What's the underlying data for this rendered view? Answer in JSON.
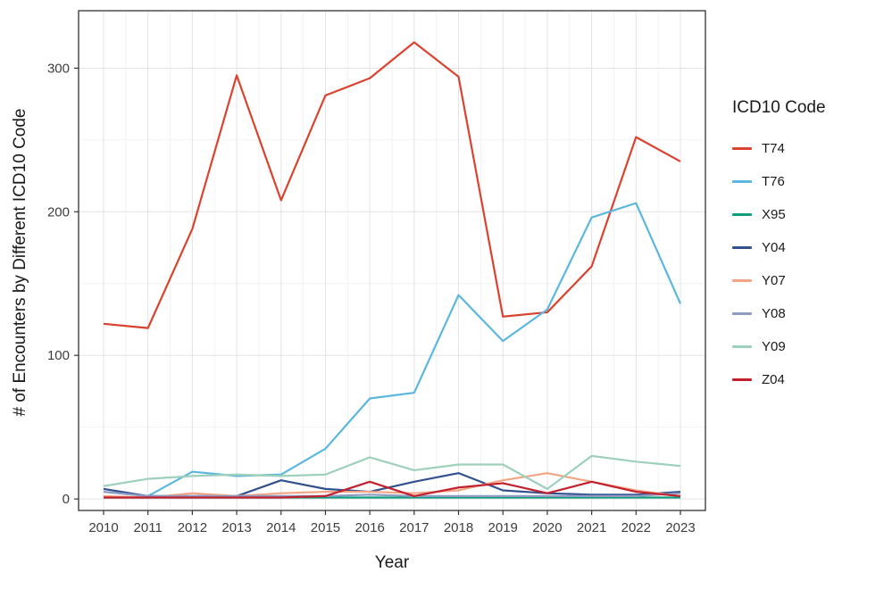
{
  "chart_data": {
    "type": "line",
    "title": "",
    "xlabel": "Year",
    "ylabel": "# of Encounters by Different ICD10 Code",
    "legend_title": "ICD10 Code",
    "legend_position": "right",
    "grid": true,
    "x": [
      2010,
      2011,
      2012,
      2013,
      2014,
      2015,
      2016,
      2017,
      2018,
      2019,
      2020,
      2021,
      2022,
      2023
    ],
    "ylim": [
      -8,
      340
    ],
    "yticks": [
      0,
      100,
      200,
      300
    ],
    "series": [
      {
        "name": "T74",
        "color": "#d9432f",
        "values": [
          122,
          119,
          188,
          295,
          208,
          281,
          293,
          318,
          294,
          127,
          130,
          162,
          252,
          235
        ]
      },
      {
        "name": "T76",
        "color": "#5bb7dd",
        "values": [
          5,
          2,
          19,
          16,
          17,
          35,
          70,
          74,
          142,
          110,
          132,
          196,
          206,
          136
        ]
      },
      {
        "name": "X95",
        "color": "#0e9e7d",
        "values": [
          1,
          1,
          1,
          1,
          1,
          1,
          1,
          1,
          1,
          1,
          1,
          1,
          1,
          1
        ]
      },
      {
        "name": "Y04",
        "color": "#33518f",
        "values": [
          7,
          2,
          2,
          2,
          13,
          7,
          5,
          12,
          18,
          6,
          4,
          3,
          3,
          5
        ]
      },
      {
        "name": "Y07",
        "color": "#f2a582",
        "values": [
          2,
          1,
          4,
          2,
          4,
          5,
          5,
          4,
          6,
          13,
          18,
          12,
          6,
          2
        ]
      },
      {
        "name": "Y08",
        "color": "#8e9cc3",
        "values": [
          5,
          2,
          2,
          2,
          2,
          2,
          3,
          2,
          2,
          2,
          2,
          2,
          2,
          4
        ]
      },
      {
        "name": "Y09",
        "color": "#9ed0bb",
        "values": [
          9,
          14,
          16,
          17,
          16,
          17,
          29,
          20,
          24,
          24,
          7,
          30,
          26,
          23
        ]
      },
      {
        "name": "Z04",
        "color": "#c2202f",
        "values": [
          1,
          1,
          1,
          1,
          1,
          2,
          12,
          2,
          8,
          11,
          4,
          12,
          5,
          2
        ]
      }
    ]
  },
  "style": {
    "grid_major": "#e3e3e3",
    "grid_minor": "#f1f1f1",
    "panel_border": "#333333",
    "axis_text": "#3d3d3d",
    "background": "#ffffff"
  }
}
